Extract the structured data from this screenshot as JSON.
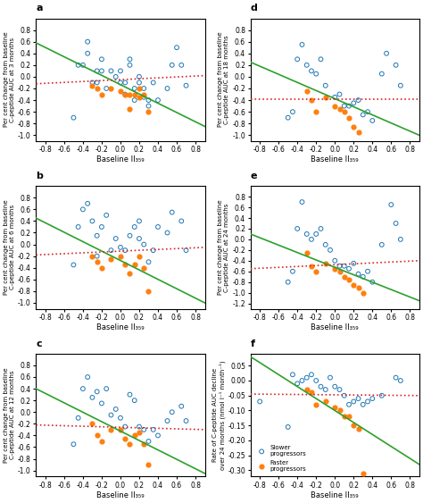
{
  "chart_data": [
    {
      "type": "scatter",
      "title": "a",
      "xlabel": "Baseline II₃₅₉",
      "ylabel": "Per cent change from baseline\nC-peptide AUC at 3 months",
      "xlim": [
        -0.9,
        0.9
      ],
      "xticks": [
        -0.8,
        -0.6,
        -0.4,
        -0.2,
        0.0,
        0.2,
        0.4,
        0.6,
        0.8
      ],
      "ylim": [
        -1.1,
        1.0
      ],
      "yticks": [
        -1.0,
        -0.8,
        -0.6,
        -0.4,
        -0.2,
        0.0,
        0.2,
        0.4,
        0.6,
        0.8
      ],
      "series": [
        {
          "marker": "circle_open",
          "x": [
            -0.5,
            -0.45,
            -0.4,
            -0.35,
            -0.35,
            -0.3,
            -0.25,
            -0.25,
            -0.2,
            -0.2,
            -0.15,
            -0.1,
            -0.05,
            0.0,
            0.0,
            0.05,
            0.05,
            0.1,
            0.1,
            0.15,
            0.15,
            0.2,
            0.2,
            0.25,
            0.25,
            0.3,
            0.3,
            0.35,
            0.4,
            0.5,
            0.55,
            0.6,
            0.65,
            0.7
          ],
          "values": [
            -0.7,
            0.2,
            0.2,
            0.4,
            0.6,
            -0.1,
            0.1,
            -0.1,
            0.1,
            0.3,
            -0.2,
            0.1,
            0.0,
            -0.1,
            0.1,
            -0.3,
            -0.1,
            0.3,
            0.2,
            -0.2,
            -0.4,
            -0.1,
            0.0,
            -0.2,
            -0.35,
            -0.4,
            -0.5,
            -0.1,
            -0.4,
            -0.2,
            0.2,
            0.5,
            0.2,
            -0.15
          ]
        },
        {
          "marker": "circle",
          "x": [
            -0.3,
            -0.25,
            -0.2,
            -0.1,
            0.0,
            0.05,
            0.1,
            0.1,
            0.15,
            0.2,
            0.2,
            0.25,
            0.3
          ],
          "values": [
            -0.15,
            -0.2,
            -0.3,
            -0.2,
            -0.25,
            -0.3,
            -0.3,
            -0.55,
            -0.3,
            -0.2,
            -0.35,
            -0.3,
            -0.6
          ]
        },
        {
          "type": "line",
          "line_style": "solid",
          "x": [
            -0.9,
            0.9
          ],
          "values": [
            0.58,
            -0.85
          ]
        },
        {
          "type": "line",
          "line_style": "dotted",
          "x": [
            -0.9,
            0.9
          ],
          "values": [
            -0.12,
            0.02
          ]
        }
      ]
    },
    {
      "type": "scatter",
      "title": "b",
      "xlabel": "Baseline II₃₅₉",
      "ylabel": "Per cent change from baseline\nC-peptide AUC at 6 months",
      "xlim": [
        -0.9,
        0.9
      ],
      "xticks": [
        -0.8,
        -0.6,
        -0.4,
        -0.2,
        0.0,
        0.2,
        0.4,
        0.6,
        0.8
      ],
      "ylim": [
        -1.1,
        1.0
      ],
      "yticks": [
        -1.0,
        -0.8,
        -0.6,
        -0.4,
        -0.2,
        0.0,
        0.2,
        0.4,
        0.6,
        0.8
      ],
      "series": [
        {
          "marker": "circle_open",
          "x": [
            -0.5,
            -0.45,
            -0.4,
            -0.35,
            -0.3,
            -0.25,
            -0.25,
            -0.2,
            -0.15,
            -0.1,
            -0.05,
            0.0,
            0.05,
            0.1,
            0.15,
            0.2,
            0.2,
            0.25,
            0.3,
            0.35,
            0.4,
            0.5,
            0.55,
            0.65,
            0.7
          ],
          "values": [
            -0.35,
            0.3,
            0.6,
            0.7,
            0.4,
            0.15,
            -0.2,
            0.3,
            0.5,
            -0.1,
            0.1,
            -0.05,
            -0.1,
            0.15,
            0.3,
            0.1,
            0.4,
            0.0,
            -0.3,
            -0.1,
            0.3,
            0.2,
            0.55,
            0.4,
            -0.1
          ]
        },
        {
          "marker": "circle",
          "x": [
            -0.3,
            -0.25,
            -0.2,
            -0.1,
            0.0,
            0.05,
            0.1,
            0.15,
            0.2,
            0.25,
            0.3
          ],
          "values": [
            -0.2,
            -0.3,
            -0.4,
            -0.25,
            -0.2,
            -0.35,
            -0.5,
            -0.35,
            -0.2,
            -0.4,
            -0.8
          ]
        },
        {
          "type": "line",
          "line_style": "solid",
          "x": [
            -0.9,
            0.9
          ],
          "values": [
            0.45,
            -1.0
          ]
        },
        {
          "type": "line",
          "line_style": "dotted",
          "x": [
            -0.9,
            0.9
          ],
          "values": [
            -0.18,
            -0.05
          ]
        }
      ]
    },
    {
      "type": "scatter",
      "title": "c",
      "xlabel": "Baseline II₃₅₉",
      "ylabel": "Per cent change from baseline\nC-peptide AUC at 12 months",
      "xlim": [
        -0.9,
        0.9
      ],
      "xticks": [
        -0.8,
        -0.6,
        -0.4,
        -0.2,
        0.0,
        0.2,
        0.4,
        0.6,
        0.8
      ],
      "ylim": [
        -1.1,
        1.0
      ],
      "yticks": [
        -1.0,
        -0.8,
        -0.6,
        -0.4,
        -0.2,
        0.0,
        0.2,
        0.4,
        0.6,
        0.8
      ],
      "series": [
        {
          "marker": "circle_open",
          "x": [
            -0.5,
            -0.45,
            -0.4,
            -0.35,
            -0.3,
            -0.25,
            -0.2,
            -0.15,
            -0.1,
            -0.05,
            0.0,
            0.05,
            0.1,
            0.15,
            0.2,
            0.25,
            0.3,
            0.35,
            0.4,
            0.5,
            0.55,
            0.65,
            0.7
          ],
          "values": [
            -0.55,
            -0.1,
            0.4,
            0.6,
            0.25,
            0.35,
            0.15,
            0.4,
            -0.05,
            0.05,
            -0.1,
            -0.25,
            0.3,
            0.2,
            -0.25,
            -0.3,
            -0.5,
            -0.3,
            -0.4,
            -0.15,
            0.0,
            0.1,
            -0.15
          ]
        },
        {
          "marker": "circle",
          "x": [
            -0.3,
            -0.25,
            -0.2,
            -0.1,
            0.0,
            0.05,
            0.1,
            0.15,
            0.2,
            0.25,
            0.3
          ],
          "values": [
            -0.2,
            -0.4,
            -0.5,
            -0.3,
            -0.3,
            -0.45,
            -0.55,
            -0.4,
            -0.35,
            -0.55,
            -0.9
          ]
        },
        {
          "type": "line",
          "line_style": "solid",
          "x": [
            -0.9,
            0.9
          ],
          "values": [
            0.4,
            -1.05
          ]
        },
        {
          "type": "line",
          "line_style": "dotted",
          "x": [
            -0.9,
            0.9
          ],
          "values": [
            -0.22,
            -0.3
          ]
        }
      ]
    },
    {
      "type": "scatter",
      "title": "d",
      "xlabel": "Baseline II₃₅₉",
      "ylabel": "Per cent change from baseline\nC-peptide AUC at 18 months",
      "xlim": [
        -0.9,
        0.9
      ],
      "xticks": [
        -0.8,
        -0.6,
        -0.4,
        -0.2,
        0.0,
        0.2,
        0.4,
        0.6,
        0.8
      ],
      "ylim": [
        -1.1,
        1.0
      ],
      "yticks": [
        -1.0,
        -0.8,
        -0.6,
        -0.4,
        -0.2,
        0.0,
        0.2,
        0.4,
        0.6,
        0.8
      ],
      "series": [
        {
          "marker": "circle_open",
          "x": [
            -0.5,
            -0.45,
            -0.4,
            -0.35,
            -0.3,
            -0.25,
            -0.2,
            -0.15,
            -0.1,
            0.0,
            0.05,
            0.1,
            0.15,
            0.2,
            0.25,
            0.3,
            0.35,
            0.4,
            0.5,
            0.55,
            0.65,
            0.7
          ],
          "values": [
            -0.7,
            -0.6,
            0.3,
            0.55,
            0.2,
            0.1,
            0.05,
            0.3,
            -0.15,
            -0.35,
            -0.3,
            -0.5,
            -0.5,
            -0.45,
            -0.4,
            -0.65,
            -0.6,
            -0.75,
            0.05,
            0.4,
            0.2,
            -0.15
          ]
        },
        {
          "marker": "circle",
          "x": [
            -0.3,
            -0.25,
            -0.2,
            -0.1,
            0.0,
            0.05,
            0.1,
            0.15,
            0.2,
            0.25
          ],
          "values": [
            -0.25,
            -0.4,
            -0.6,
            -0.35,
            -0.5,
            -0.55,
            -0.6,
            -0.7,
            -0.85,
            -0.95
          ]
        },
        {
          "type": "line",
          "line_style": "solid",
          "x": [
            -0.9,
            0.9
          ],
          "values": [
            0.25,
            -1.0
          ]
        },
        {
          "type": "line",
          "line_style": "dotted",
          "x": [
            -0.9,
            0.9
          ],
          "values": [
            -0.38,
            -0.38
          ]
        }
      ]
    },
    {
      "type": "scatter",
      "title": "e",
      "xlabel": "Baseline II₃₅₉",
      "ylabel": "Per cent change from baseline\nC-peptide AUC at 24 months",
      "xlim": [
        -0.9,
        0.9
      ],
      "xticks": [
        -0.8,
        -0.6,
        -0.4,
        -0.2,
        0.0,
        0.2,
        0.4,
        0.6,
        0.8
      ],
      "ylim": [
        -1.3,
        1.0
      ],
      "yticks": [
        -1.2,
        -1.0,
        -0.8,
        -0.6,
        -0.4,
        -0.2,
        0.0,
        0.2,
        0.4,
        0.6,
        0.8
      ],
      "series": [
        {
          "marker": "circle_open",
          "x": [
            -0.5,
            -0.45,
            -0.4,
            -0.35,
            -0.3,
            -0.25,
            -0.2,
            -0.15,
            -0.1,
            -0.05,
            0.0,
            0.05,
            0.1,
            0.15,
            0.2,
            0.25,
            0.3,
            0.35,
            0.4,
            0.5,
            0.6,
            0.65,
            0.7
          ],
          "values": [
            -0.8,
            -0.6,
            0.2,
            0.7,
            0.1,
            0.0,
            0.1,
            0.2,
            -0.1,
            -0.2,
            -0.4,
            -0.5,
            -0.5,
            -0.55,
            -0.45,
            -0.65,
            -0.7,
            -0.6,
            -0.8,
            -0.1,
            0.65,
            0.3,
            -0.0
          ]
        },
        {
          "marker": "circle",
          "x": [
            -0.3,
            -0.25,
            -0.2,
            -0.1,
            0.0,
            0.05,
            0.1,
            0.15,
            0.2,
            0.25,
            0.3
          ],
          "values": [
            -0.25,
            -0.5,
            -0.6,
            -0.45,
            -0.55,
            -0.6,
            -0.7,
            -0.75,
            -0.85,
            -0.9,
            -1.0
          ]
        },
        {
          "type": "line",
          "line_style": "solid",
          "x": [
            -0.9,
            0.9
          ],
          "values": [
            0.1,
            -1.15
          ]
        },
        {
          "type": "line",
          "line_style": "dotted",
          "x": [
            -0.9,
            0.9
          ],
          "values": [
            -0.55,
            -0.4
          ]
        }
      ]
    },
    {
      "type": "scatter",
      "title": "f",
      "xlabel": "Baseline II₃₅₉",
      "ylabel": "Rate of C-peptide AUC decline\nover 24 months (nmol l⁻¹ month⁻¹)",
      "xlim": [
        -0.9,
        0.9
      ],
      "xticks": [
        -0.8,
        -0.6,
        -0.4,
        -0.2,
        0.0,
        0.2,
        0.4,
        0.6,
        0.8
      ],
      "ylim": [
        -0.32,
        0.09
      ],
      "yticks": [
        {
          "value": -0.3,
          "label": "-0.30"
        },
        {
          "value": -0.25,
          "label": "-0.25"
        },
        {
          "value": -0.2,
          "label": "-0.20"
        },
        {
          "value": -0.15,
          "label": "-0.15"
        },
        {
          "value": -0.1,
          "label": "-0.10"
        },
        {
          "value": -0.05,
          "label": "-0.05"
        },
        {
          "value": 0.0,
          "label": "0.00"
        },
        {
          "value": 0.05,
          "label": "0.05"
        }
      ],
      "legend": "lower left",
      "series": [
        {
          "name": "Slower\nprogressors",
          "marker": "circle_open",
          "x": [
            -0.8,
            -0.5,
            -0.45,
            -0.4,
            -0.35,
            -0.3,
            -0.25,
            -0.2,
            -0.15,
            -0.1,
            -0.05,
            0.0,
            0.05,
            0.1,
            0.15,
            0.2,
            0.25,
            0.3,
            0.35,
            0.4,
            0.5,
            0.65,
            0.7
          ],
          "values": [
            -0.07,
            -0.155,
            0.02,
            -0.01,
            0.0,
            0.01,
            0.02,
            0.0,
            -0.02,
            -0.03,
            0.01,
            -0.02,
            -0.03,
            -0.05,
            -0.08,
            -0.07,
            -0.06,
            -0.08,
            -0.07,
            -0.06,
            -0.05,
            0.01,
            -0.0
          ]
        },
        {
          "name": "Faster\nprogressors",
          "marker": "circle",
          "x": [
            -0.3,
            -0.25,
            -0.2,
            -0.1,
            0.0,
            0.05,
            0.1,
            0.15,
            0.2,
            0.25,
            0.3
          ],
          "values": [
            -0.03,
            -0.04,
            -0.08,
            -0.07,
            -0.09,
            -0.1,
            -0.12,
            -0.12,
            -0.15,
            -0.16,
            -0.31
          ]
        },
        {
          "type": "line",
          "line_style": "solid",
          "x": [
            -0.9,
            0.9
          ],
          "values": [
            0.08,
            -0.28
          ]
        },
        {
          "type": "line",
          "line_style": "dotted",
          "x": [
            -0.9,
            0.9
          ],
          "values": [
            -0.045,
            -0.05
          ]
        }
      ]
    }
  ]
}
